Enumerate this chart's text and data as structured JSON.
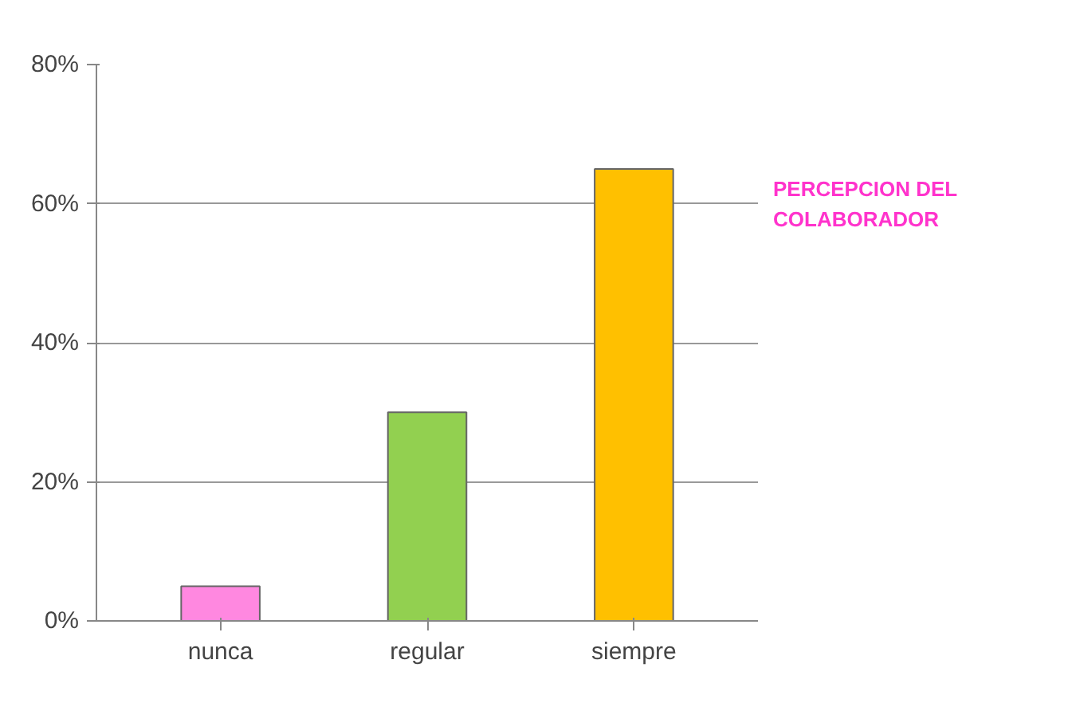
{
  "chart_data": {
    "type": "bar",
    "title": "PERCEPCION DEL COLABORADOR",
    "categories": [
      "nunca",
      "regular",
      "siempre"
    ],
    "values": [
      5,
      30,
      65
    ],
    "colors": [
      "#ff88e0",
      "#92d050",
      "#ffc000"
    ],
    "ylim": [
      0,
      80
    ],
    "yticks": [
      {
        "value": 0,
        "label": "0%"
      },
      {
        "value": 20,
        "label": "20%"
      },
      {
        "value": 40,
        "label": "40%"
      },
      {
        "value": 60,
        "label": "60%"
      },
      {
        "value": 80,
        "label": "80%"
      }
    ],
    "grid": "y"
  }
}
